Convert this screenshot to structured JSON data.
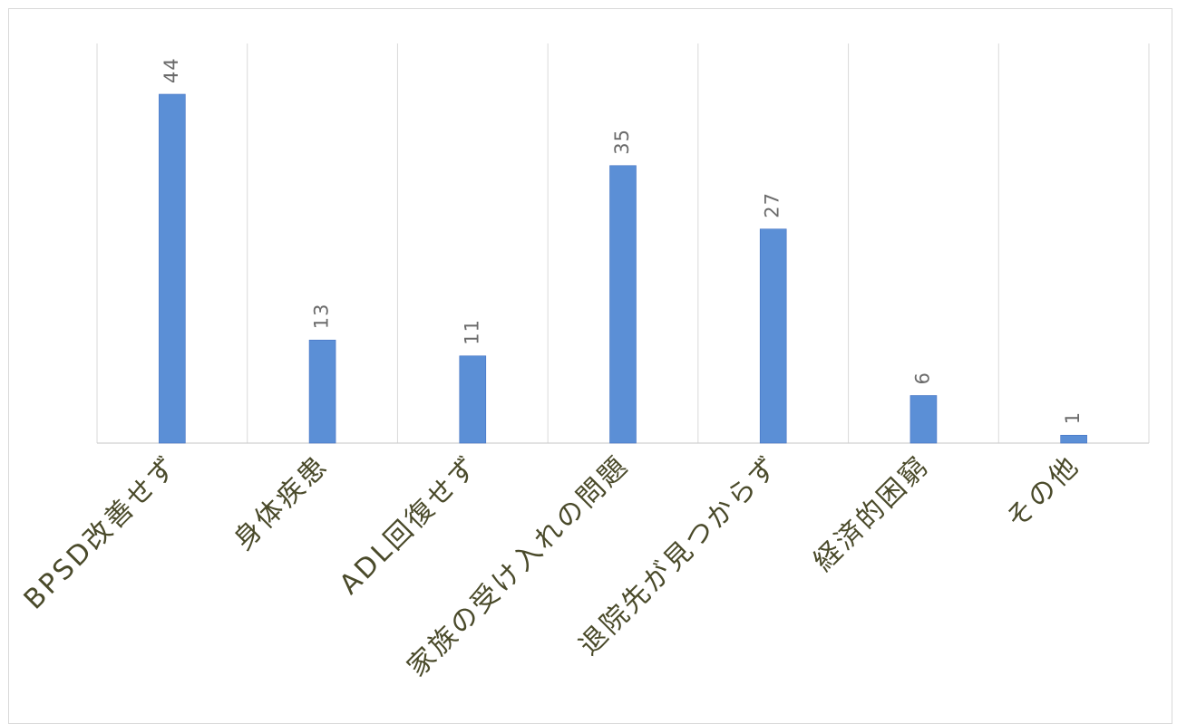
{
  "chart_data": {
    "type": "bar",
    "categories": [
      "BPSD改善せず",
      "身体疾患",
      "ADL回復せず",
      "家族の受け入れの問題",
      "退院先が見つからず",
      "経済的困窮",
      "その他"
    ],
    "values": [
      44,
      13,
      11,
      35,
      27,
      6,
      1
    ],
    "ylim": [
      0,
      50
    ],
    "grid": true,
    "legend": "none",
    "data_labels": true
  },
  "colors": {
    "bar": "#5b8fd6",
    "bar_edge": "#4472c4",
    "gridline": "#d9d9d9",
    "axis": "#d0d0d0",
    "label_text": "#4a4a2a",
    "value_text": "#6b6b6b"
  }
}
